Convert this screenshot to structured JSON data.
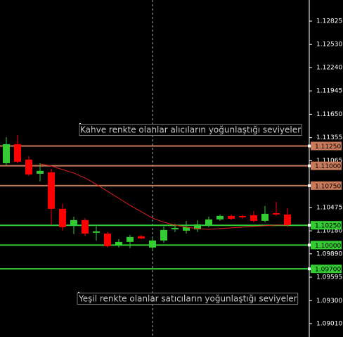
{
  "chart_data": {
    "type": "candlestick",
    "ylim": [
      1.08841,
      1.13091
    ],
    "yticks": [
      1.12825,
      {
        "value": 1.1253,
        "label": "1.12530"
      },
      {
        "value": 1.1224,
        "label": "1.12240"
      },
      1.11945,
      {
        "value": 1.1165,
        "label": "1.11650"
      },
      1.11355,
      1.11065,
      1.10475,
      {
        "value": 1.1018,
        "label": "1.10180"
      },
      {
        "value": 1.0989,
        "label": "1.09890"
      },
      1.09595,
      {
        "value": 1.093,
        "label": "1.09300"
      },
      {
        "value": 1.0901,
        "label": "1.09010"
      }
    ],
    "open": [
      1.11033,
      1.11273,
      1.11078,
      1.109,
      1.10918,
      1.10457,
      1.10244,
      1.10315,
      1.10155,
      1.10146,
      1.09995,
      1.1004,
      1.10111,
      1.09969,
      1.10058,
      1.10199,
      1.10182,
      1.10199,
      1.10244,
      1.10324,
      1.10368,
      1.10368,
      1.10377,
      1.10306,
      1.10403,
      1.10386
    ],
    "high": [
      1.11361,
      1.11388,
      1.11122,
      1.11033,
      1.10962,
      1.10519,
      1.10359,
      1.10341,
      1.10235,
      1.10164,
      1.10075,
      1.10129,
      1.10129,
      1.10093,
      1.10235,
      1.1027,
      1.10306,
      1.10315,
      1.10359,
      1.10386,
      1.10386,
      1.10377,
      1.1043,
      1.10492,
      1.10545,
      1.10466
    ],
    "low": [
      1.11007,
      1.11033,
      1.10874,
      1.10803,
      1.10253,
      1.10182,
      1.10137,
      1.1012,
      1.10058,
      1.09969,
      1.09969,
      1.0996,
      1.10075,
      1.09942,
      1.10031,
      1.10164,
      1.10146,
      1.10164,
      1.10226,
      1.10306,
      1.10315,
      1.10333,
      1.10288,
      1.10288,
      1.10368,
      1.10226
    ],
    "close": [
      1.11273,
      1.11051,
      1.10891,
      1.10936,
      1.10457,
      1.10226,
      1.10315,
      1.10146,
      1.10173,
      1.09987,
      1.1004,
      1.10102,
      1.10084,
      1.10058,
      1.10191,
      1.10217,
      1.10226,
      1.10262,
      1.10324,
      1.10368,
      1.10333,
      1.1035,
      1.10306,
      1.10395,
      1.10386,
      1.10253
    ],
    "up_color": "#33cc33",
    "down_color": "#ff0000",
    "line_values": [
      null,
      null,
      null,
      1.11024,
      1.10998,
      1.10953,
      1.10909,
      1.10847,
      1.10767,
      1.10678,
      1.1059,
      1.10501,
      1.10421,
      1.10341,
      1.10288,
      1.10253,
      1.10226,
      1.10208,
      1.10199,
      1.10208,
      1.10217,
      1.10226,
      1.10235,
      1.10244,
      1.10253,
      1.10253
    ],
    "line_color": "#e02020",
    "levels": [
      {
        "value": 1.1125,
        "label": "1.11250",
        "color": "#c87a5a"
      },
      {
        "value": 1.11,
        "label": "1.11000",
        "color": "#c87a5a"
      },
      {
        "value": 1.1075,
        "label": "1.10750",
        "color": "#c87a5a"
      },
      {
        "value": 1.1025,
        "label": "1.10250",
        "color": "#33cc33"
      },
      {
        "value": 1.1,
        "label": "1.10000",
        "color": "#33cc33"
      },
      {
        "value": 1.097,
        "label": "1.09700",
        "color": "#33cc33"
      }
    ],
    "annotations": [
      "Kahve renkte olanlar alıcıların yoğunlaştığı seviyeler",
      "Yeşil renkte olanlar satıcıların yoğunlaştığı seviyeler"
    ]
  }
}
